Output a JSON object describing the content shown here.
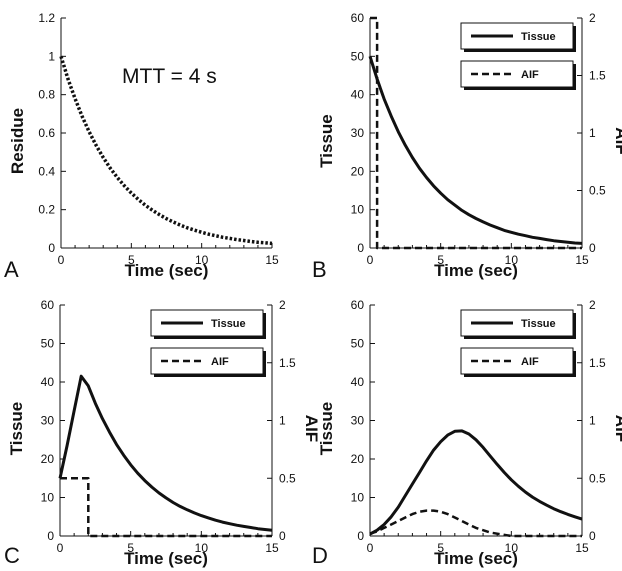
{
  "chart_data": [
    {
      "panel": "A",
      "type": "line",
      "annotation": "MTT = 4 s",
      "xlabel": "Time (sec)",
      "ylabel": "Residue",
      "xlim": [
        0,
        15
      ],
      "ylim": [
        0,
        1.2
      ],
      "xticks": [
        "0",
        "5",
        "10",
        "15"
      ],
      "yticks": [
        "0",
        "0.2",
        "0.4",
        "0.6",
        "0.8",
        "1",
        "1.2"
      ],
      "series": [
        {
          "style": "dotted",
          "x": [
            0,
            0.5,
            1,
            1.5,
            2,
            2.5,
            3,
            3.5,
            4,
            4.5,
            5,
            5.5,
            6,
            6.5,
            7,
            7.5,
            8,
            8.5,
            9,
            9.5,
            10,
            10.5,
            11,
            11.5,
            12,
            12.5,
            13,
            13.5,
            14,
            14.5,
            15
          ],
          "y": [
            1,
            0.882,
            0.779,
            0.687,
            0.607,
            0.535,
            0.472,
            0.417,
            0.368,
            0.325,
            0.287,
            0.253,
            0.223,
            0.197,
            0.174,
            0.153,
            0.135,
            0.119,
            0.105,
            0.093,
            0.082,
            0.072,
            0.064,
            0.056,
            0.05,
            0.044,
            0.039,
            0.034,
            0.03,
            0.027,
            0.024
          ]
        }
      ]
    },
    {
      "panel": "B",
      "type": "line",
      "xlabel": "Time (sec)",
      "ylabel": "Tissue",
      "y2label": "AIF",
      "xlim": [
        0,
        15
      ],
      "ylim": [
        0,
        60
      ],
      "y2lim": [
        0,
        2
      ],
      "xticks": [
        "0",
        "5",
        "10",
        "15"
      ],
      "yticks": [
        "0",
        "10",
        "20",
        "30",
        "40",
        "50",
        "60"
      ],
      "y2ticks": [
        "0",
        "0.5",
        "1",
        "1.5",
        "2"
      ],
      "legend": [
        "Tissue",
        "AIF"
      ],
      "legend_position": "top-right",
      "series": [
        {
          "name": "Tissue",
          "style": "solid",
          "axis": "left",
          "x": [
            0,
            0.5,
            1,
            1.5,
            2,
            2.5,
            3,
            3.5,
            4,
            4.5,
            5,
            5.5,
            6,
            6.5,
            7,
            7.5,
            8,
            8.5,
            9,
            9.5,
            10,
            10.5,
            11,
            11.5,
            12,
            12.5,
            13,
            13.5,
            14,
            14.5,
            15
          ],
          "y": [
            50,
            44.1,
            38.9,
            34.4,
            30.3,
            26.8,
            23.6,
            20.8,
            18.4,
            16.2,
            14.3,
            12.6,
            11.2,
            9.8,
            8.7,
            7.7,
            6.8,
            6,
            5.3,
            4.6,
            4.1,
            3.6,
            3.2,
            2.8,
            2.5,
            2.2,
            1.9,
            1.7,
            1.5,
            1.3,
            1.2
          ]
        },
        {
          "name": "AIF",
          "style": "dashed",
          "axis": "right",
          "x": [
            0,
            0.5,
            0.5,
            15
          ],
          "y": [
            2,
            2,
            0,
            0
          ]
        }
      ]
    },
    {
      "panel": "C",
      "type": "line",
      "xlabel": "Time (sec)",
      "ylabel": "Tissue",
      "y2label": "AIF",
      "xlim": [
        0,
        15
      ],
      "ylim": [
        0,
        60
      ],
      "y2lim": [
        0,
        2
      ],
      "xticks": [
        "0",
        "5",
        "10",
        "15"
      ],
      "yticks": [
        "0",
        "10",
        "20",
        "30",
        "40",
        "50",
        "60"
      ],
      "y2ticks": [
        "0",
        "0.5",
        "1",
        "1.5",
        "2"
      ],
      "legend": [
        "Tissue",
        "AIF"
      ],
      "legend_position": "top-right",
      "series": [
        {
          "name": "Tissue",
          "style": "solid",
          "axis": "left",
          "x": [
            0,
            0.5,
            1,
            1.5,
            2,
            2.5,
            3,
            3.5,
            4,
            4.5,
            5,
            5.5,
            6,
            6.5,
            7,
            7.5,
            8,
            8.5,
            9,
            9.5,
            10,
            10.5,
            11,
            11.5,
            12,
            12.5,
            13,
            13.5,
            14,
            14.5,
            15
          ],
          "y": [
            15,
            23.5,
            32.5,
            41.5,
            39,
            34.5,
            30.5,
            27,
            23.8,
            21,
            18.5,
            16.3,
            14.4,
            12.7,
            11.2,
            9.9,
            8.7,
            7.7,
            6.8,
            6,
            5.3,
            4.7,
            4.1,
            3.6,
            3.2,
            2.8,
            2.5,
            2.2,
            1.9,
            1.7,
            1.5
          ]
        },
        {
          "name": "AIF",
          "style": "dashed",
          "axis": "right",
          "x": [
            0,
            2,
            2,
            15
          ],
          "y": [
            0.5,
            0.5,
            0,
            0
          ]
        }
      ]
    },
    {
      "panel": "D",
      "type": "line",
      "xlabel": "Time (sec)",
      "ylabel": "Tissue",
      "y2label": "AIF",
      "xlim": [
        0,
        15
      ],
      "ylim": [
        0,
        60
      ],
      "y2lim": [
        0,
        2
      ],
      "xticks": [
        "0",
        "5",
        "10",
        "15"
      ],
      "yticks": [
        "0",
        "10",
        "20",
        "30",
        "40",
        "50",
        "60"
      ],
      "y2ticks": [
        "0",
        "0.5",
        "1",
        "1.5",
        "2"
      ],
      "legend": [
        "Tissue",
        "AIF"
      ],
      "legend_position": "top-right",
      "series": [
        {
          "name": "Tissue",
          "style": "solid",
          "axis": "left",
          "x": [
            0,
            0.5,
            1,
            1.5,
            2,
            2.5,
            3,
            3.5,
            4,
            4.5,
            5,
            5.5,
            6,
            6.5,
            7,
            7.5,
            8,
            8.5,
            9,
            9.5,
            10,
            10.5,
            11,
            11.5,
            12,
            12.5,
            13,
            13.5,
            14,
            14.5,
            15
          ],
          "y": [
            0.5,
            1.5,
            3,
            5,
            7.5,
            10.5,
            13.5,
            16.5,
            19.5,
            22.3,
            24.5,
            26.2,
            27.2,
            27.3,
            26.5,
            25,
            23,
            20.8,
            18.6,
            16.5,
            14.6,
            12.9,
            11.4,
            10.1,
            9,
            8,
            7.1,
            6.3,
            5.6,
            5,
            4.4
          ]
        },
        {
          "name": "AIF",
          "style": "dashed",
          "axis": "right",
          "x": [
            0,
            0.5,
            1,
            1.5,
            2,
            2.5,
            3,
            3.5,
            4,
            4.5,
            5,
            5.5,
            6,
            6.5,
            7,
            7.5,
            8,
            8.5,
            9,
            9.5,
            10,
            10.5,
            11,
            11.5,
            12,
            12.5,
            13,
            13.5,
            14,
            14.5,
            15
          ],
          "y": [
            0.02,
            0.04,
            0.07,
            0.1,
            0.13,
            0.16,
            0.19,
            0.21,
            0.22,
            0.22,
            0.21,
            0.19,
            0.16,
            0.13,
            0.1,
            0.07,
            0.05,
            0.03,
            0.02,
            0.01,
            0,
            0,
            0,
            0,
            0,
            0,
            0,
            0,
            0,
            0,
            0
          ]
        }
      ]
    }
  ]
}
